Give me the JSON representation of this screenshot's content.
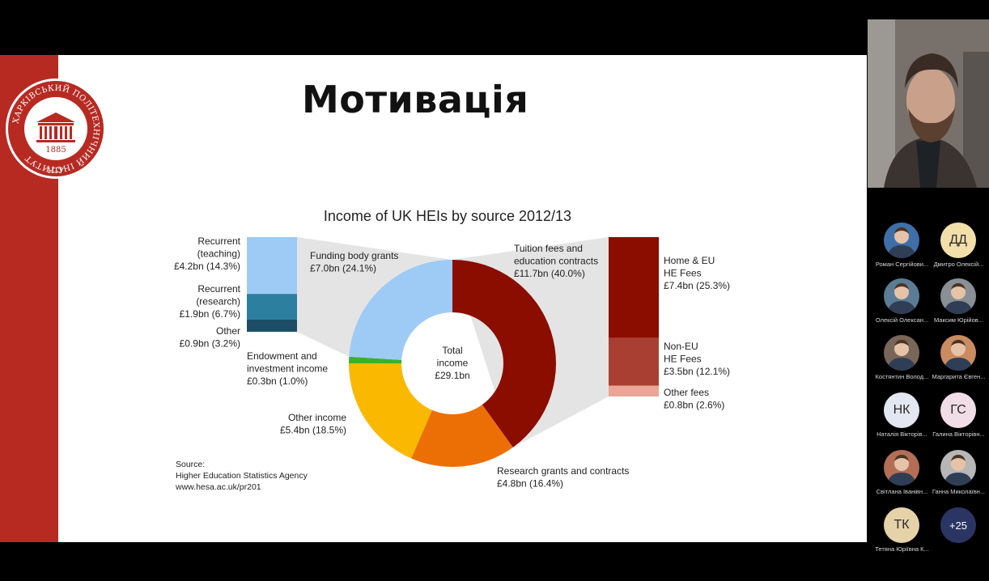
{
  "slide": {
    "title": "Мотивація",
    "logo": {
      "text": "ХАРКІВСЬКИЙ ПОЛІТЕХНІЧНИЙ ІНСТИТУТ",
      "year": "1885",
      "bottom": "НТУ"
    }
  },
  "chart_data": {
    "type": "pie",
    "title": "Income of UK HEIs by source 2012/13",
    "center_label": [
      "Total",
      "income",
      "£29.1bn"
    ],
    "slices": [
      {
        "name": "Tuition fees and education contracts",
        "value": 11.7,
        "percent": 40.0,
        "color": "#8b0d00",
        "label": [
          "Tuition fees and",
          "education contracts",
          "£11.7bn (40.0%)"
        ]
      },
      {
        "name": "Research grants and contracts",
        "value": 4.8,
        "percent": 16.4,
        "color": "#ec6f06",
        "label": [
          "Research grants and contracts",
          "£4.8bn (16.4%)"
        ]
      },
      {
        "name": "Other income",
        "value": 5.4,
        "percent": 18.5,
        "color": "#fab800",
        "label": [
          "Other income",
          "£5.4bn (18.5%)"
        ]
      },
      {
        "name": "Endowment and investment income",
        "value": 0.3,
        "percent": 1.0,
        "color": "#3bb12a",
        "label": [
          "Endowment and",
          "investment income",
          "£0.3bn (1.0%)"
        ]
      },
      {
        "name": "Funding body grants",
        "value": 7.0,
        "percent": 24.1,
        "color": "#9dcbf6",
        "label": [
          "Funding body grants",
          "£7.0bn (24.1%)"
        ]
      }
    ],
    "left_breakdown": [
      {
        "label": [
          "Recurrent",
          "(teaching)",
          "£4.2bn (14.3%)"
        ],
        "value": 4.2,
        "percent": 14.3,
        "color": "#9dcbf6"
      },
      {
        "label": [
          "Recurrent",
          "(research)",
          "£1.9bn (6.7%)"
        ],
        "value": 1.9,
        "percent": 6.7,
        "color": "#2d7fa0"
      },
      {
        "label": [
          "Other",
          "£0.9bn (3.2%)"
        ],
        "value": 0.9,
        "percent": 3.2,
        "color": "#1b4e66"
      }
    ],
    "right_breakdown": [
      {
        "label": [
          "Home & EU",
          "HE Fees",
          "£7.4bn (25.3%)"
        ],
        "value": 7.4,
        "percent": 25.3,
        "color": "#8b0d00"
      },
      {
        "label": [
          "Non-EU",
          "HE Fees",
          "£3.5bn (12.1%)"
        ],
        "value": 3.5,
        "percent": 12.1,
        "color": "#a83f32"
      },
      {
        "label": [
          "Other fees",
          "£0.8bn (2.6%)"
        ],
        "value": 0.8,
        "percent": 2.6,
        "color": "#eba596"
      }
    ],
    "source": [
      "Source:",
      "Higher Education Statistics Agency",
      "www.hesa.ac.uk/pr201"
    ]
  },
  "participants": [
    {
      "name": "Роман Сергійови...",
      "initials": "",
      "bg": "#3f6fa8"
    },
    {
      "name": "Дмитро Олексій...",
      "initials": "ДД",
      "bg": "#f2dfaa"
    },
    {
      "name": "Олексій Олексан...",
      "initials": "",
      "bg": "#5b7c95"
    },
    {
      "name": "Максим Юрійов...",
      "initials": "",
      "bg": "#8a8f95"
    },
    {
      "name": "Костянтин Волод...",
      "initials": "",
      "bg": "#7a6658"
    },
    {
      "name": "Маргарита Євген...",
      "initials": "",
      "bg": "#c98b5f"
    },
    {
      "name": "Наталія Вікторів...",
      "initials": "НК",
      "bg": "#e3e7f2"
    },
    {
      "name": "Галина Вікторівн...",
      "initials": "ГС",
      "bg": "#f1dde6"
    },
    {
      "name": "Світлана Іванівн...",
      "initials": "",
      "bg": "#b36e55"
    },
    {
      "name": "Ганна Миколаївн...",
      "initials": "",
      "bg": "#b7b7b7"
    },
    {
      "name": "Тетяна Юріївна К...",
      "initials": "ТК",
      "bg": "#e5d2a9"
    },
    {
      "name": "",
      "initials": "+25",
      "bg": "#2b3563"
    }
  ]
}
